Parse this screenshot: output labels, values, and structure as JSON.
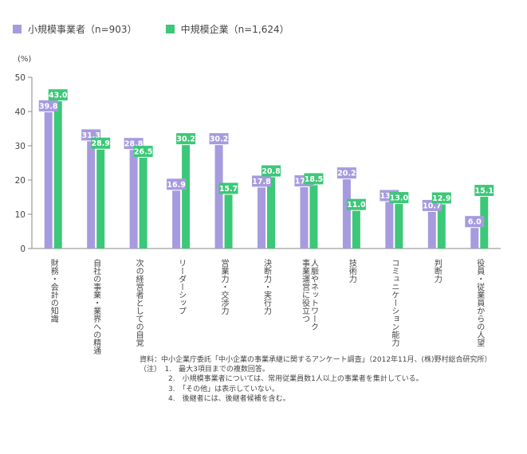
{
  "legend": {
    "series1": "小規模事業者（n=903）",
    "series2": "中規模企業（n=1,624）"
  },
  "colors": {
    "series1": "#a79bdf",
    "series2": "#3cc878",
    "axis": "#888888",
    "grid": "#e2e2e2"
  },
  "chart_data": {
    "type": "bar",
    "ylabel": "(%)",
    "ylim": [
      0,
      50
    ],
    "yticks": [
      "0",
      "10",
      "20",
      "30",
      "40",
      "50"
    ],
    "categories": [
      "財務・会計の知識",
      "自社の事業・業界への精通",
      "次の経営者としての自覚",
      "リーダーシップ",
      "営業力・交渉力",
      "決断力・実行力",
      "人脈やネットワーク 事業運営に役立つ",
      "技術力",
      "コミュニケーション能力",
      "判断力",
      "役員・従業員からの人望"
    ],
    "series": [
      {
        "name": "小規模事業者（n=903）",
        "values": [
          39.8,
          31.3,
          28.8,
          16.9,
          30.2,
          17.8,
          17.9,
          20.2,
          13.6,
          10.7,
          6.0
        ],
        "labels": [
          "39.8",
          "31.3",
          "28.8",
          "16.9",
          "30.2",
          "17.8",
          "17.9",
          "20.2",
          "13.6",
          "10.7",
          "6.0"
        ]
      },
      {
        "name": "中規模企業（n=1,624）",
        "values": [
          43.0,
          28.9,
          26.5,
          30.2,
          15.7,
          20.8,
          18.5,
          11.0,
          13.0,
          12.9,
          15.1
        ],
        "labels": [
          "43.0",
          "28.9",
          "26.5",
          "30.2",
          "15.7",
          "20.8",
          "18.5",
          "11.0",
          "13.0",
          "12.9",
          "15.1"
        ]
      }
    ],
    "grid": false,
    "legend_position": "top-left"
  },
  "notes": {
    "source": "資料：中小企業庁委託「中小企業の事業承継に関するアンケート調査」（2012年11月、(株)野村総合研究所）",
    "line1": "（注）　1.　最大3項目までの複数回答。",
    "line2": "　　　　2.　小規模事業者については、常用従業員数1人以上の事業者を集計している。",
    "line3": "　　　　3.　「その他」は表示していない。",
    "line4": "　　　　4.　後継者には、後継者候補を含む。"
  }
}
